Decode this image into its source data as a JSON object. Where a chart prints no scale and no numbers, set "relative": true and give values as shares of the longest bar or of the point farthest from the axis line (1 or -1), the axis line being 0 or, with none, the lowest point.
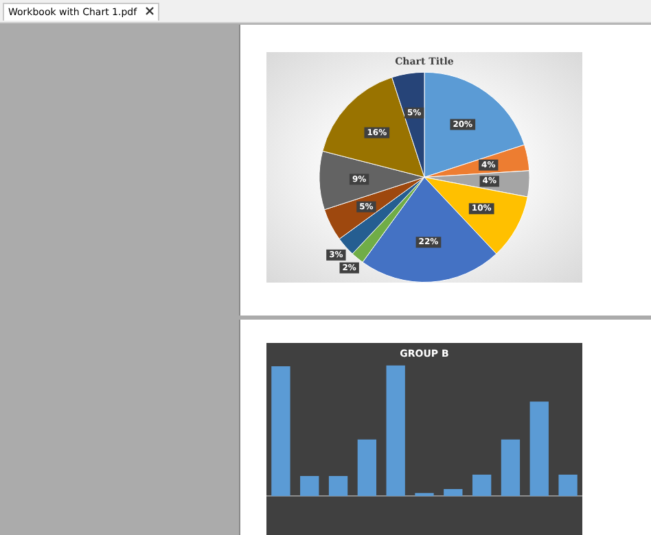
{
  "chart_data": [
    {
      "type": "pie",
      "title": "Chart Title",
      "categories": [
        null,
        null,
        null,
        null,
        null,
        null,
        null,
        null,
        null,
        null,
        null
      ],
      "values": [
        20,
        4,
        4,
        10,
        22,
        2,
        3,
        5,
        9,
        16,
        5
      ],
      "value_labels": [
        "20%",
        "4%",
        "4%",
        "10%",
        "22%",
        "2%",
        "3%",
        "5%",
        "9%",
        "16%",
        "5%"
      ],
      "colors": [
        "#5b9bd5",
        "#ed7d31",
        "#a5a5a5",
        "#ffc000",
        "#4472c4",
        "#70ad47",
        "#255e91",
        "#9e480e",
        "#636363",
        "#997300",
        "#264478"
      ],
      "annotations": [
        "Workbook with Chart 1.pdf"
      ]
    },
    {
      "type": "bar",
      "title": "GROUP B",
      "relative": true,
      "categories": [
        null,
        null,
        null,
        null,
        null,
        null,
        null,
        null,
        null,
        null,
        null
      ],
      "values": [
        0.99,
        0.15,
        0.15,
        0.43,
        1,
        0.02,
        0.05,
        0.16,
        0.43,
        0.72,
        0.16
      ],
      "color": "#5b9bd5",
      "grid": false
    }
  ]
}
